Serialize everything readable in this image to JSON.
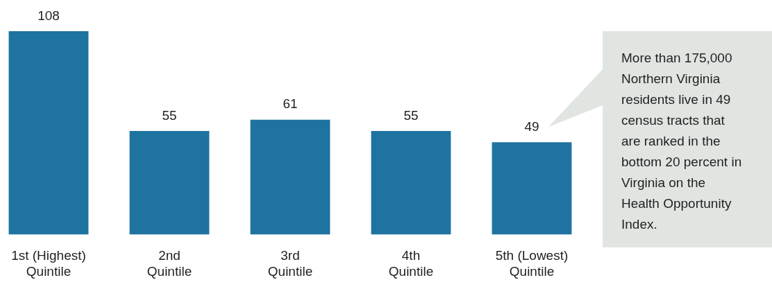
{
  "chart_data": {
    "type": "bar",
    "categories": [
      "1st (Highest) Quintile",
      "2nd Quintile",
      "3rd Quintile",
      "4th Quintile",
      "5th (Lowest) Quintile"
    ],
    "values": [
      108,
      55,
      61,
      55,
      49
    ],
    "color": "#1f73a0",
    "data_labels": true,
    "grid": false,
    "legend": false,
    "annotations": [
      "More than 175,000 Northern Virginia residents live in 49 census tracts that are ranked in the bottom 20 percent in Virginia on the Health Opportunity Index."
    ]
  }
}
